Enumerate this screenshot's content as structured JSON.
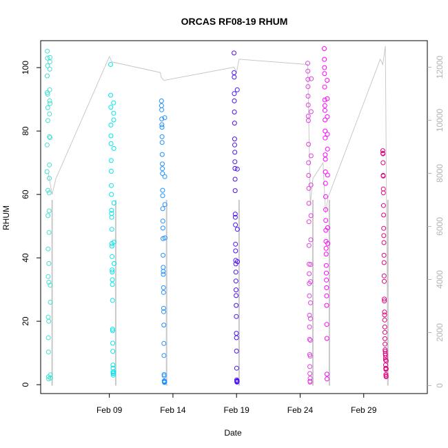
{
  "chart_data": {
    "type": "scatter",
    "title": "ORCAS RF08-19 RHUM",
    "xlabel": "Date",
    "ylabel": "RHUM",
    "xlim": [
      3.6,
      34.0
    ],
    "ylim": [
      -2.8,
      108.5
    ],
    "y2lim": [
      -300,
      13000
    ],
    "x_ticks": [
      9,
      14,
      19,
      24,
      29
    ],
    "x_tick_labels": [
      "Feb 09",
      "Feb 14",
      "Feb 19",
      "Feb 24",
      "Feb 29"
    ],
    "y_ticks": [
      0,
      20,
      40,
      60,
      80,
      100
    ],
    "y_tick_labels": [
      "0",
      "20",
      "40",
      "60",
      "80",
      "100"
    ],
    "y2_ticks": [
      0,
      2000,
      4000,
      6000,
      8000,
      10000,
      12000
    ],
    "y2_tick_labels": [
      "0",
      "2000",
      "4000",
      "6000",
      "8000",
      "10000",
      "12000"
    ],
    "grid": false,
    "series": [
      {
        "color": "#40e0d0",
        "x": [
          4.1,
          4.12,
          4.14,
          4.16,
          4.18,
          4.2,
          4.22,
          4.24,
          4.26,
          4.28,
          4.3,
          4.32,
          4.34,
          4.36,
          4.38,
          4.4,
          4.42,
          4.44,
          4.46,
          4.48,
          4.5,
          4.52,
          4.54,
          4.56,
          4.58,
          4.6,
          4.62,
          4.64,
          4.66,
          4.68,
          4.7,
          4.72,
          4.74,
          4.76,
          4.78,
          4.8,
          4.82,
          4.84,
          4.86,
          4.88
        ],
        "y": [
          67.2,
          75.6,
          97.4,
          92.1,
          105.2,
          103.0,
          100.6,
          91.6,
          87.4,
          83.3,
          61.3,
          53.3,
          42.8,
          34.1,
          21.3,
          14.8,
          10.3,
          2.5,
          1.8,
          20.0,
          32.3,
          38.2,
          48.0,
          54.8,
          60.5,
          65.1,
          69.3,
          78.2,
          85.4,
          89.5,
          93.0,
          99.5,
          101.8,
          103.2,
          88.7,
          77.9,
          31.4,
          26.0,
          3.1,
          2.1
        ]
      },
      {
        "color": "#00e5ee",
        "x": [
          9.1,
          9.12,
          9.14,
          9.16,
          9.18,
          9.2,
          9.22,
          9.24,
          9.26,
          9.28,
          9.3,
          9.32,
          9.34,
          9.36,
          9.38,
          9.4,
          9.42,
          9.44,
          9.46,
          9.48,
          9.5,
          9.52,
          9.54,
          9.56,
          9.58,
          9.6,
          9.62,
          9.64,
          9.66,
          9.68,
          9.7,
          9.72,
          9.74,
          9.76,
          9.78,
          9.8,
          9.82,
          9.84,
          9.86,
          9.88
        ],
        "y": [
          101.0,
          91.3,
          87.5,
          81.9,
          78.5,
          76.0,
          70.7,
          67.3,
          62.8,
          60.0,
          55.0,
          54.0,
          52.8,
          49.0,
          44.5,
          43.7,
          40.4,
          36.2,
          35.5,
          33.1,
          31.6,
          26.6,
          17.5,
          17.0,
          13.1,
          10.5,
          6.2,
          5.2,
          4.0,
          3.5,
          3.0,
          3.6,
          4.1,
          88.9,
          85.6,
          83.5,
          74.5,
          57.3,
          45.0,
          38.2
        ]
      },
      {
        "color": "#1e90ff",
        "x": [
          13.1,
          13.12,
          13.14,
          13.16,
          13.18,
          13.2,
          13.22,
          13.24,
          13.26,
          13.28,
          13.3,
          13.32,
          13.34,
          13.36,
          13.38,
          13.4,
          13.42,
          13.44,
          13.46,
          13.48,
          13.5,
          13.52,
          13.54,
          13.56,
          13.58,
          13.6,
          13.62,
          13.64,
          13.66,
          13.68,
          13.7,
          13.72,
          13.74,
          13.76,
          13.78,
          13.8,
          13.82,
          13.84,
          13.86,
          13.88
        ],
        "y": [
          89.5,
          88.0,
          86.7,
          83.8,
          82.0,
          81.2,
          78.2,
          76.4,
          72.6,
          69.6,
          68.1,
          66.6,
          61.3,
          59.6,
          55.5,
          51.6,
          49.4,
          46.1,
          40.8,
          37.0,
          35.7,
          34.8,
          30.6,
          29.1,
          24.1,
          23.0,
          18.8,
          13.0,
          9.2,
          3.2,
          2.8,
          1.2,
          0.9,
          0.7,
          0.8,
          1.1,
          84.2,
          65.6,
          56.8,
          46.3
        ]
      },
      {
        "color": "#4b0ff0",
        "x": [
          18.8,
          18.82,
          18.84,
          18.86,
          18.88,
          18.9,
          18.92,
          18.94,
          18.96,
          18.98,
          19.0,
          19.02,
          19.04,
          19.06,
          19.08,
          19.1,
          19.12,
          19.14,
          19.16,
          19.18,
          19.2,
          19.22,
          19.24,
          19.26,
          19.28,
          19.3,
          19.32,
          19.34,
          19.36,
          19.38,
          19.4,
          19.42,
          19.44,
          19.46,
          19.48,
          19.5,
          19.52,
          19.54,
          19.56,
          19.58
        ],
        "y": [
          104.6,
          98.4,
          97.0,
          91.8,
          89.5,
          86.0,
          82.5,
          77.5,
          75.6,
          73.3,
          70.3,
          68.2,
          64.8,
          61.2,
          53.8,
          52.8,
          50.4,
          44.3,
          42.2,
          39.2,
          38.1,
          35.5,
          32.7,
          29.9,
          28.1,
          25.0,
          21.5,
          16.2,
          14.8,
          10.6,
          5.2,
          1.5,
          1.0,
          0.8,
          1.2,
          1.1,
          93.0,
          68.0,
          49.0,
          38.8
        ]
      },
      {
        "color": "#e040e0",
        "x": [
          24.6,
          24.62,
          24.64,
          24.66,
          24.68,
          24.7,
          24.72,
          24.74,
          24.76,
          24.78,
          24.8,
          24.82,
          24.84,
          24.86,
          24.88,
          24.9,
          24.92,
          24.94,
          24.96,
          24.98,
          25.0,
          25.02,
          25.04,
          25.06,
          25.08,
          25.1,
          25.12,
          25.14,
          25.16,
          25.18,
          25.2,
          25.22,
          25.24,
          25.26,
          25.28,
          25.3,
          25.32,
          25.34,
          25.36,
          25.38
        ],
        "y": [
          101.4,
          98.9,
          96.3,
          94.0,
          91.0,
          88.2,
          84.7,
          83.3,
          75.8,
          70.0,
          66.0,
          61.9,
          57.2,
          51.4,
          43.9,
          38.0,
          35.0,
          31.9,
          28.0,
          21.9,
          18.2,
          14.3,
          9.5,
          5.7,
          3.5,
          1.1,
          0.8,
          2.0,
          9.0,
          14.0,
          20.8,
          25.8,
          32.5,
          37.9,
          45.7,
          53.3,
          63.0,
          72.2,
          86.1,
          96.5
        ]
      },
      {
        "color": "#ff00ff",
        "x": [
          25.9,
          25.92,
          25.94,
          25.96,
          25.98,
          26.0,
          26.02,
          26.04,
          26.06,
          26.08,
          26.1,
          26.12,
          26.14,
          26.16,
          26.18,
          26.2,
          26.22,
          26.24,
          26.26,
          26.28,
          26.3,
          26.32,
          26.34,
          26.36,
          26.38,
          26.4,
          26.42,
          26.44,
          26.46,
          26.48,
          26.5,
          26.52,
          26.54,
          26.56,
          26.58,
          26.6,
          26.62,
          26.64,
          26.66,
          26.68
        ],
        "y": [
          106.0,
          102.6,
          100.0,
          98.1,
          93.9,
          89.8,
          88.0,
          86.5,
          83.5,
          80.0,
          77.8,
          72.5,
          71.1,
          67.1,
          63.5,
          59.3,
          55.2,
          51.8,
          48.7,
          45.2,
          43.0,
          41.2,
          37.6,
          35.2,
          33.0,
          30.6,
          28.0,
          25.0,
          19.0,
          14.6,
          3.3,
          1.8,
          96.0,
          90.2,
          84.5,
          79.0,
          74.3,
          66.1,
          49.5,
          44.5
        ]
      },
      {
        "color": "#e0007f",
        "x": [
          30.5,
          30.52,
          30.54,
          30.56,
          30.58,
          30.6,
          30.62,
          30.64,
          30.66,
          30.68,
          30.7,
          30.72,
          30.74,
          30.76,
          30.78,
          30.8,
          30.82,
          30.84,
          30.86,
          30.88,
          30.9,
          30.92,
          30.94,
          30.96,
          30.98,
          31.0,
          31.02,
          31.04,
          31.06,
          31.08,
          31.1,
          31.12,
          31.14,
          31.16,
          31.18,
          31.2,
          31.22,
          31.24,
          31.26,
          31.28
        ],
        "y": [
          73.8,
          73.0,
          72.8,
          70.0,
          66.0,
          65.8,
          61.7,
          60.5,
          56.5,
          53.5,
          49.3,
          47.0,
          44.8,
          40.8,
          38.5,
          34.3,
          32.6,
          27.0,
          26.4,
          22.9,
          22.0,
          20.4,
          18.2,
          16.5,
          14.5,
          12.8,
          11.0,
          10.5,
          9.8,
          9.3,
          8.5,
          7.8,
          6.2,
          5.2,
          4.8,
          3.2,
          2.8,
          2.5,
          5.0,
          7.5
        ]
      }
    ],
    "altitude_line": {
      "color": "#c8c8c8",
      "x": [
        4.2,
        4.5,
        4.8,
        9.0,
        9.2,
        13.0,
        13.1,
        13.3,
        18.8,
        19.0,
        19.2,
        24.6,
        24.8,
        25.0,
        25.8,
        26.0,
        26.2,
        30.3,
        30.5,
        30.7,
        30.9
      ],
      "y": [
        8000,
        7200,
        7800,
        12400,
        12200,
        11800,
        11600,
        11500,
        12000,
        11800,
        12300,
        12100,
        6800,
        7800,
        8400,
        6500,
        7100,
        12300,
        12100,
        12800,
        200
      ]
    }
  }
}
